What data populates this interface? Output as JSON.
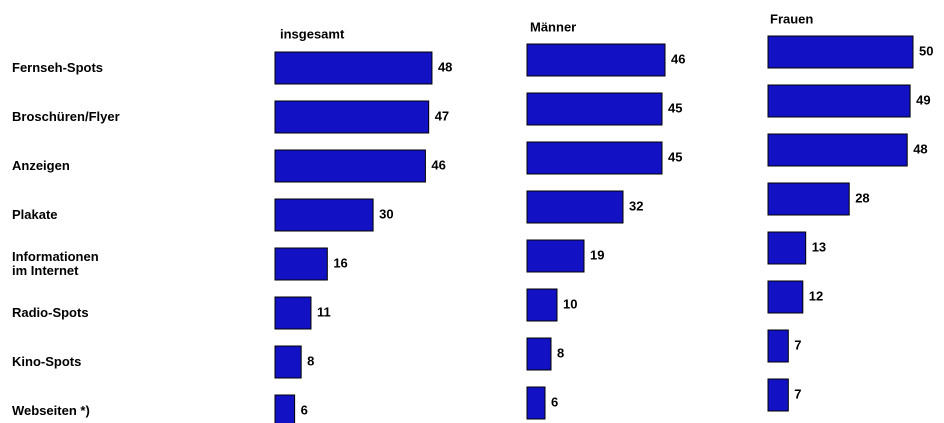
{
  "chart_data": [
    {
      "type": "bar",
      "title": "insgesamt",
      "color": "#1212c4",
      "categories": [
        "Fernseh-Spots",
        "Broschüren/Flyer",
        "Anzeigen",
        "Plakate",
        "Informationen\nim Internet",
        "Radio-Spots",
        "Kino-Spots",
        "Webseiten *)"
      ],
      "values": [
        48,
        47,
        46,
        30,
        16,
        11,
        8,
        6
      ]
    },
    {
      "type": "bar",
      "title": "Männer",
      "color": "#1212c4",
      "values": [
        46,
        45,
        45,
        32,
        19,
        10,
        8,
        6
      ]
    },
    {
      "type": "bar",
      "title": "Frauen",
      "color": "#1212c4",
      "values": [
        50,
        49,
        48,
        28,
        13,
        12,
        7,
        7
      ]
    }
  ]
}
